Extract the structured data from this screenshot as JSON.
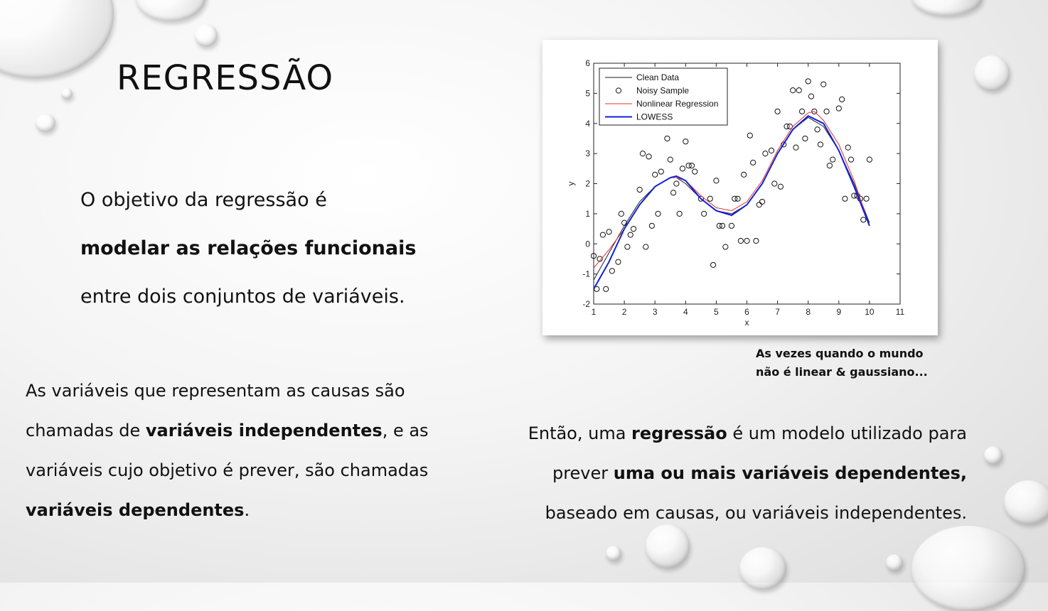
{
  "title": "REGRESSÃO",
  "intro": {
    "line1": "O objetivo da regressão é",
    "line2": "modelar as relações funcionais",
    "line3": "entre dois conjuntos de variáveis."
  },
  "causes": {
    "line1": "As variáveis que representam as causas são",
    "line2_pre": "chamadas de ",
    "line2_bold": "variáveis independentes",
    "line2_post": ", e as",
    "line3": "variáveis cujo objetivo é prever, são chamadas",
    "line4_bold": "variáveis dependentes",
    "line4_post": "."
  },
  "conclusion": {
    "line1_pre": "Então, uma ",
    "line1_bold": "regressão",
    "line1_post": " é um modelo utilizado para",
    "line2_pre": "prever ",
    "line2_bold": "uma ou mais variáveis dependentes,",
    "line3": "baseado em causas, ou variáveis independentes."
  },
  "caption": {
    "line1": "As vezes quando o mundo",
    "line2": "não é linear & gaussiano..."
  },
  "chart_data": {
    "type": "scatter",
    "title": "",
    "xlabel": "x",
    "ylabel": "y",
    "xlim": [
      1,
      11
    ],
    "ylim": [
      -2,
      6
    ],
    "xticks": [
      1,
      2,
      3,
      4,
      5,
      6,
      7,
      8,
      9,
      10,
      11
    ],
    "yticks": [
      -2,
      -1,
      0,
      1,
      2,
      3,
      4,
      5,
      6
    ],
    "legend_position": "top-left",
    "grid": false,
    "series": [
      {
        "name": "Clean Data",
        "kind": "line",
        "color": "#222222",
        "x": [
          1,
          1.5,
          2,
          2.5,
          3,
          3.5,
          3.7,
          4,
          4.5,
          5,
          5.5,
          6,
          6.5,
          7,
          7.5,
          8,
          8.5,
          9,
          9.5,
          10
        ],
        "y": [
          -1.2,
          -0.3,
          0.6,
          1.4,
          1.9,
          2.2,
          2.2,
          2.0,
          1.5,
          1.1,
          1.0,
          1.3,
          2.0,
          3.0,
          3.8,
          4.2,
          3.9,
          3.1,
          2.0,
          0.7
        ]
      },
      {
        "name": "Noisy Sample",
        "kind": "scatter",
        "color": "#111111",
        "x": [
          1.0,
          1.1,
          1.2,
          1.3,
          1.4,
          1.5,
          1.6,
          1.8,
          1.9,
          2.0,
          2.1,
          2.2,
          2.3,
          2.5,
          2.6,
          2.7,
          2.8,
          2.9,
          3.0,
          3.1,
          3.2,
          3.4,
          3.5,
          3.6,
          3.7,
          3.8,
          3.9,
          4.0,
          4.1,
          4.2,
          4.3,
          4.5,
          4.6,
          4.8,
          4.9,
          5.0,
          5.1,
          5.2,
          5.3,
          5.5,
          5.6,
          5.7,
          5.8,
          5.9,
          6.0,
          6.1,
          6.2,
          6.3,
          6.4,
          6.5,
          6.6,
          6.8,
          6.9,
          7.0,
          7.1,
          7.2,
          7.3,
          7.4,
          7.5,
          7.6,
          7.7,
          7.8,
          7.9,
          8.0,
          8.1,
          8.2,
          8.3,
          8.4,
          8.5,
          8.6,
          8.7,
          8.8,
          9.0,
          9.1,
          9.2,
          9.3,
          9.4,
          9.5,
          9.6,
          9.7,
          9.8,
          9.9,
          10.0
        ],
        "y": [
          -0.4,
          -1.5,
          -0.5,
          0.3,
          -1.5,
          0.4,
          -0.9,
          -0.6,
          1.0,
          0.7,
          -0.1,
          0.3,
          0.5,
          1.8,
          3.0,
          -0.1,
          2.9,
          0.6,
          2.3,
          1.0,
          2.4,
          3.5,
          2.8,
          1.7,
          2.0,
          1.0,
          2.5,
          3.4,
          2.6,
          2.6,
          2.4,
          1.5,
          1.0,
          1.5,
          -0.7,
          2.1,
          0.6,
          0.6,
          -0.1,
          0.6,
          1.5,
          1.5,
          0.1,
          2.3,
          0.1,
          3.6,
          2.7,
          0.1,
          1.3,
          1.4,
          3.0,
          3.1,
          2.0,
          4.4,
          1.9,
          3.3,
          3.9,
          3.9,
          5.1,
          3.2,
          5.1,
          4.4,
          3.5,
          5.4,
          4.9,
          4.4,
          3.8,
          3.3,
          5.3,
          4.4,
          2.6,
          2.8,
          4.5,
          4.8,
          1.5,
          3.2,
          2.8,
          1.6,
          1.6,
          1.5,
          0.8,
          1.5,
          2.8
        ]
      },
      {
        "name": "Nonlinear Regression",
        "kind": "line",
        "color": "#e03030",
        "x": [
          1,
          1.5,
          2,
          2.5,
          3,
          3.5,
          3.7,
          4,
          4.5,
          5,
          5.5,
          6,
          6.5,
          7,
          7.5,
          8,
          8.2,
          8.5,
          9,
          9.5,
          10
        ],
        "y": [
          -0.8,
          -0.2,
          0.5,
          1.3,
          1.9,
          2.2,
          2.2,
          2.1,
          1.6,
          1.2,
          1.1,
          1.4,
          2.1,
          3.1,
          3.9,
          4.35,
          4.4,
          4.1,
          3.3,
          2.1,
          0.6
        ]
      },
      {
        "name": "LOWESS",
        "kind": "line",
        "color": "#1020e0",
        "x": [
          1,
          1.5,
          2,
          2.5,
          3,
          3.5,
          3.7,
          4,
          4.5,
          5,
          5.5,
          6,
          6.5,
          7,
          7.5,
          8,
          8.5,
          9,
          9.5,
          10
        ],
        "y": [
          -1.5,
          -0.6,
          0.5,
          1.3,
          1.9,
          2.2,
          2.25,
          2.1,
          1.5,
          1.1,
          0.95,
          1.3,
          2.0,
          3.0,
          3.8,
          4.25,
          4.0,
          3.1,
          1.9,
          0.6
        ]
      }
    ]
  },
  "colors": {
    "text": "#111111",
    "clean": "#222222",
    "nonlinear": "#e03030",
    "lowess": "#1020e0"
  }
}
